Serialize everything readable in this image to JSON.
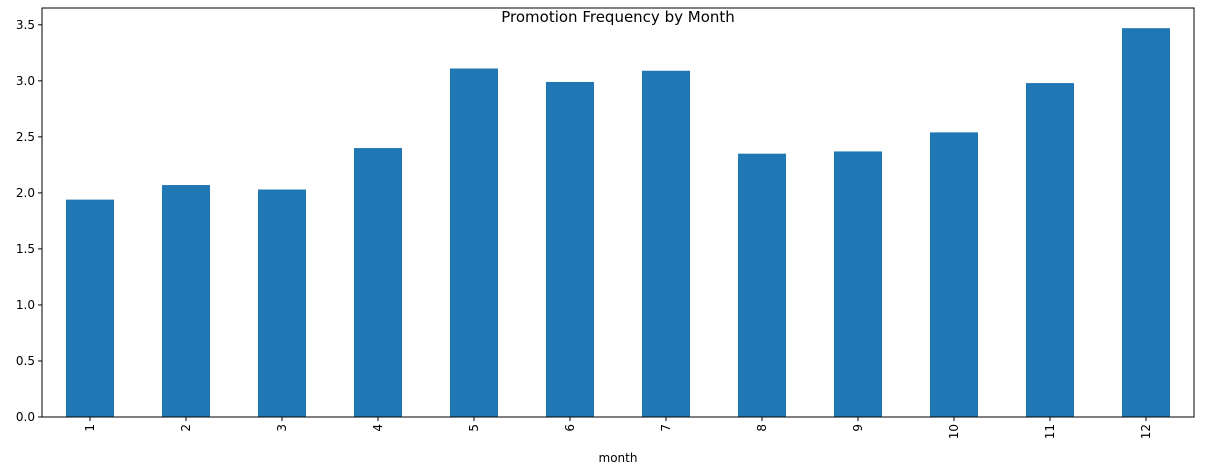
{
  "chart_data": {
    "type": "bar",
    "title": "Promotion Frequency by Month",
    "xlabel": "month",
    "ylabel": "",
    "categories": [
      "1",
      "2",
      "3",
      "4",
      "5",
      "6",
      "7",
      "8",
      "9",
      "10",
      "11",
      "12"
    ],
    "series": [
      {
        "values": [
          1.94,
          2.07,
          2.03,
          2.4,
          3.11,
          2.99,
          3.09,
          2.35,
          2.37,
          2.54,
          2.98,
          3.47
        ],
        "color": "#1f77b4"
      }
    ],
    "yticks": [
      "0.0",
      "0.5",
      "1.0",
      "1.5",
      "2.0",
      "2.5",
      "3.0",
      "3.5"
    ],
    "ylim": [
      0,
      3.65
    ],
    "x_tick_rotation": "vertical",
    "grid": false,
    "legend": "none"
  }
}
